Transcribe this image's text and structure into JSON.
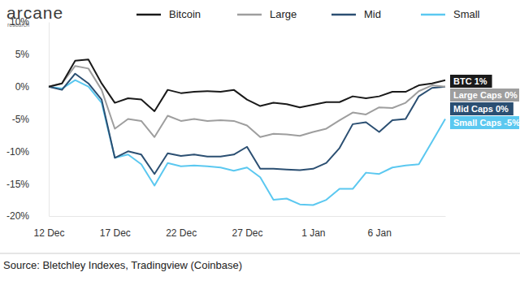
{
  "chart_data": {
    "type": "line",
    "logo": {
      "name": "arcane",
      "subtitle": "research"
    },
    "source": "Source: Bletchley Indexes, Tradingview (Coinbase)",
    "categories": [
      "12 Dec",
      null,
      null,
      null,
      null,
      "17 Dec",
      null,
      null,
      null,
      null,
      "22 Dec",
      null,
      null,
      null,
      null,
      "27 Dec",
      null,
      null,
      null,
      null,
      "1 Jan",
      null,
      null,
      null,
      null,
      "6 Jan",
      null,
      null,
      null,
      null,
      null
    ],
    "series": [
      {
        "name": "Bitcoin",
        "color": "#1a1a1a",
        "label": "BTC 1%",
        "values": [
          0,
          0.5,
          4,
          4.2,
          0.5,
          -2.5,
          -1.8,
          -2,
          -3.8,
          -0.5,
          -1,
          -0.8,
          -0.7,
          -0.8,
          -0.5,
          -2,
          -3,
          -2.5,
          -2.7,
          -3.2,
          -2.8,
          -2.4,
          -2.4,
          -1.5,
          -1.8,
          -1.5,
          -0.8,
          -0.8,
          0.2,
          0.5,
          1
        ]
      },
      {
        "name": "Large",
        "color": "#9e9e9e",
        "label": "Large Caps 0%",
        "values": [
          0,
          0.5,
          3.2,
          2.8,
          -0.5,
          -6.5,
          -5,
          -5.3,
          -7.8,
          -4.5,
          -5.3,
          -5,
          -5.3,
          -5.2,
          -5.3,
          -6,
          -7.8,
          -7.3,
          -7.4,
          -7.6,
          -7,
          -6.5,
          -5.2,
          -4,
          -4.3,
          -3.2,
          -3.3,
          -2.5,
          -0.7,
          0.2,
          0
        ]
      },
      {
        "name": "Mid",
        "color": "#2b4f72",
        "label": "Mid Caps 0%",
        "values": [
          0,
          -0.5,
          2,
          0.5,
          -2,
          -11,
          -10,
          -10.5,
          -13.5,
          -10.3,
          -10.7,
          -10.5,
          -10.8,
          -10.8,
          -10.5,
          -9.3,
          -12.7,
          -12.7,
          -12.8,
          -12.9,
          -12.7,
          -11.8,
          -9.5,
          -5.8,
          -5.5,
          -7,
          -5.2,
          -5,
          -1.5,
          -0.2,
          0
        ]
      },
      {
        "name": "Small",
        "color": "#5bc8f0",
        "label": "Small Caps -5%",
        "values": [
          0,
          -0.3,
          1,
          0,
          -2.5,
          -11,
          -10.5,
          -12,
          -15.3,
          -11.8,
          -12.3,
          -12.2,
          -12.3,
          -12.5,
          -13,
          -12.5,
          -14,
          -17.5,
          -17.3,
          -18.2,
          -18.3,
          -17.5,
          -15.8,
          -15.8,
          -13.3,
          -13.5,
          -12.5,
          -12.2,
          -12,
          -8.5,
          -5
        ]
      }
    ],
    "ylim": [
      -20,
      10
    ],
    "yticks": [
      {
        "value": 10,
        "label": "10%"
      },
      {
        "value": 5,
        "label": "5%"
      },
      {
        "value": 0,
        "label": "0%"
      },
      {
        "value": -5,
        "label": "-5%"
      },
      {
        "value": -10,
        "label": "-10%"
      },
      {
        "value": -15,
        "label": "-15%"
      },
      {
        "value": -20,
        "label": "-20%"
      }
    ],
    "grid": false,
    "legend": "top"
  }
}
